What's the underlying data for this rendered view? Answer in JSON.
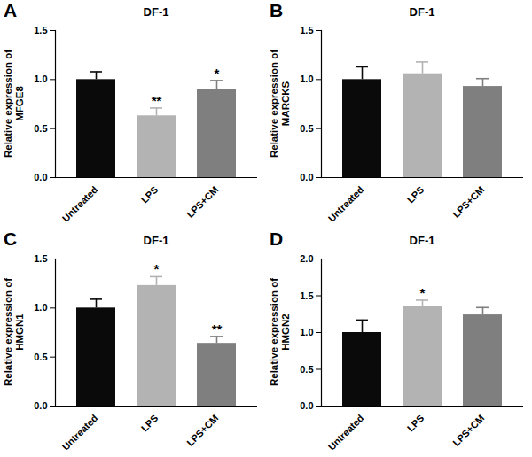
{
  "chart_data": [
    {
      "type": "bar",
      "panel": "A",
      "title": "DF-1",
      "y_label": "Relative expression of MFGE8",
      "categories": [
        "Untreated",
        "LPS",
        "LPS+CM"
      ],
      "values": [
        1.0,
        0.63,
        0.9
      ],
      "errors": [
        0.08,
        0.08,
        0.09
      ],
      "colors": [
        "#0a0a0a",
        "#b3b3b3",
        "#7f7f7f"
      ],
      "ylim": [
        0,
        1.5
      ],
      "yticks": [
        {
          "value": 0,
          "label": "0.0"
        },
        {
          "value": 0.5,
          "label": "0.5"
        },
        {
          "value": 1,
          "label": "1.0"
        },
        {
          "value": 1.5,
          "label": "1.5"
        }
      ],
      "annotations": [
        {
          "x": "LPS",
          "text": "**"
        },
        {
          "x": "LPS+CM",
          "text": "*"
        }
      ]
    },
    {
      "type": "bar",
      "panel": "B",
      "title": "DF-1",
      "y_label": "Relative expression of MARCKS",
      "categories": [
        "Untreated",
        "LPS",
        "LPS+CM"
      ],
      "values": [
        1.0,
        1.06,
        0.93
      ],
      "errors": [
        0.13,
        0.12,
        0.08
      ],
      "colors": [
        "#0a0a0a",
        "#b3b3b3",
        "#7f7f7f"
      ],
      "ylim": [
        0,
        1.5
      ],
      "yticks": [
        {
          "value": 0,
          "label": "0.0"
        },
        {
          "value": 0.5,
          "label": "0.5"
        },
        {
          "value": 1,
          "label": "1.0"
        },
        {
          "value": 1.5,
          "label": "1.5"
        }
      ],
      "annotations": []
    },
    {
      "type": "bar",
      "panel": "C",
      "title": "DF-1",
      "y_label": "Relative expression of HMGN1",
      "categories": [
        "Untreated",
        "LPS",
        "LPS+CM"
      ],
      "values": [
        1.0,
        1.23,
        0.64
      ],
      "errors": [
        0.09,
        0.09,
        0.07
      ],
      "colors": [
        "#0a0a0a",
        "#b3b3b3",
        "#7f7f7f"
      ],
      "ylim": [
        0,
        1.5
      ],
      "yticks": [
        {
          "value": 0,
          "label": "0.0"
        },
        {
          "value": 0.5,
          "label": "0.5"
        },
        {
          "value": 1,
          "label": "1.0"
        },
        {
          "value": 1.5,
          "label": "1.5"
        }
      ],
      "annotations": [
        {
          "x": "LPS",
          "text": "*"
        },
        {
          "x": "LPS+CM",
          "text": "**"
        }
      ]
    },
    {
      "type": "bar",
      "panel": "D",
      "title": "DF-1",
      "y_label": "Relative expression of HMGN2",
      "categories": [
        "Untreated",
        "LPS",
        "LPS+CM"
      ],
      "values": [
        1.0,
        1.35,
        1.24
      ],
      "errors": [
        0.17,
        0.09,
        0.1
      ],
      "colors": [
        "#0a0a0a",
        "#b3b3b3",
        "#7f7f7f"
      ],
      "ylim": [
        0,
        2
      ],
      "yticks": [
        {
          "value": 0,
          "label": "0.0"
        },
        {
          "value": 0.5,
          "label": "0.5"
        },
        {
          "value": 1,
          "label": "1.0"
        },
        {
          "value": 1.5,
          "label": "1.5"
        },
        {
          "value": 2,
          "label": "2.0"
        }
      ],
      "annotations": [
        {
          "x": "LPS",
          "text": "*"
        }
      ]
    }
  ]
}
